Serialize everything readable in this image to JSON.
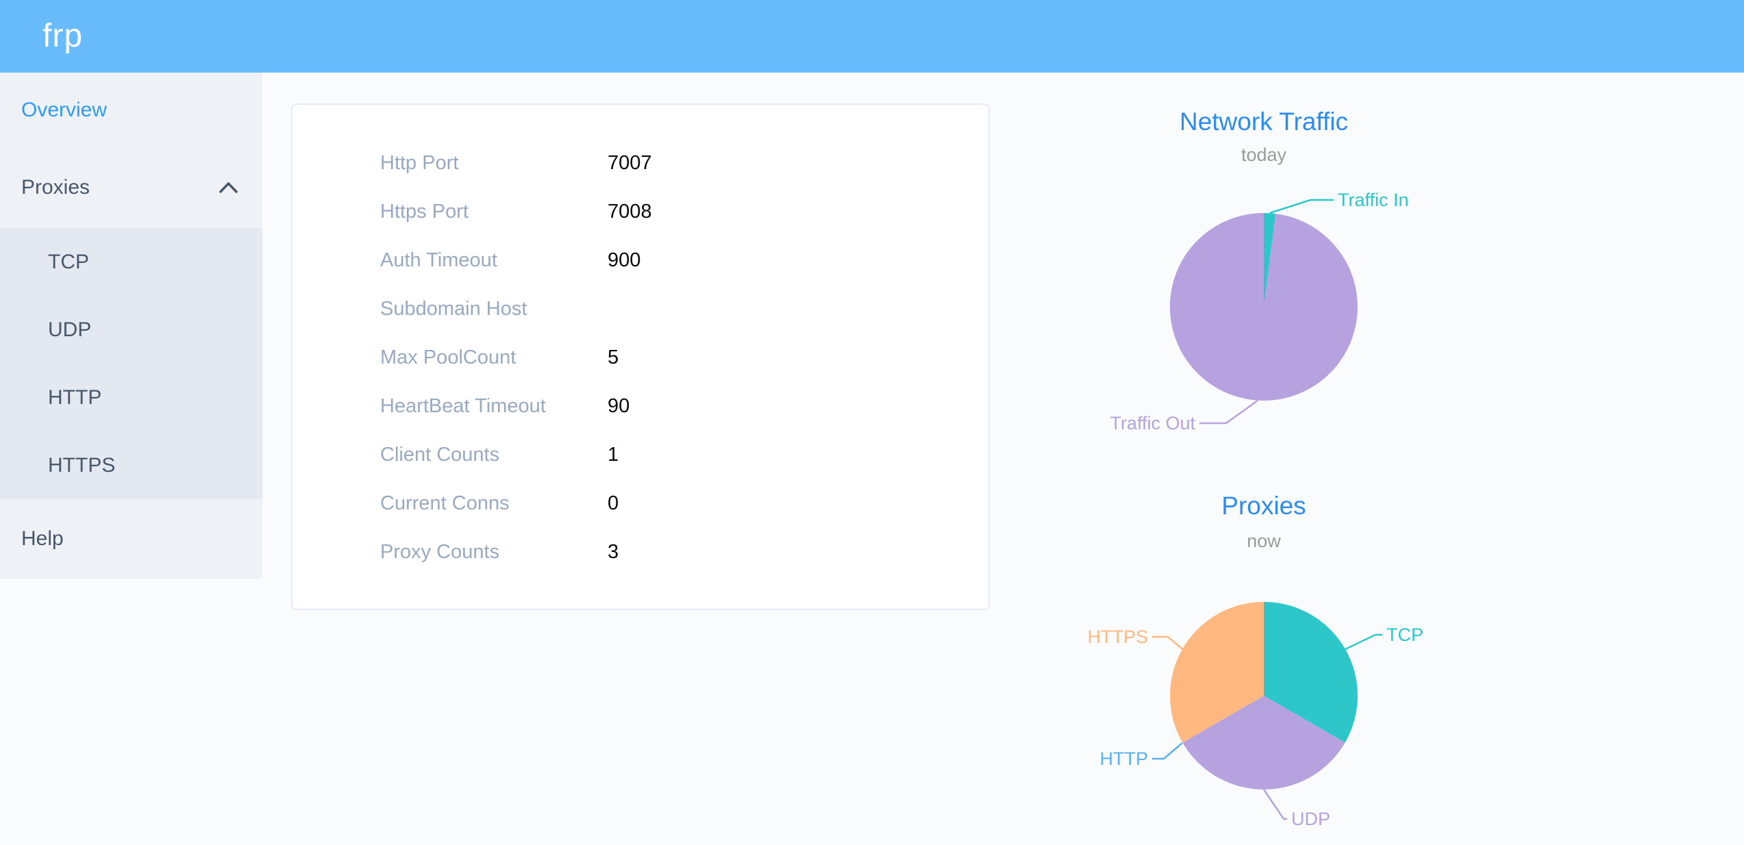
{
  "app": {
    "logo": "frp"
  },
  "colors": {
    "header_bg": "#68bcfc",
    "sidebar_bg": "#eef1f6",
    "submenu_bg": "#e4e8f1",
    "sidebar_text": "#48576a",
    "sidebar_active_text": "#2d9cf5",
    "chart_title": "#2d8cf0",
    "chart_subtitle": "#9a9a9a",
    "card_label": "#99a9bf",
    "card_value": "#0a0a0a",
    "teal": "#2ec7c9",
    "purple": "#b6a2de",
    "blue": "#5ab1ef",
    "orange": "#ffb980"
  },
  "sidebar": {
    "items": [
      {
        "label": "Overview",
        "active": true
      },
      {
        "label": "Proxies",
        "expanded": true,
        "icon": "chevron-up",
        "children": [
          "TCP",
          "UDP",
          "HTTP",
          "HTTPS"
        ]
      },
      {
        "label": "Help"
      }
    ]
  },
  "server_config": {
    "rows": [
      {
        "label": "Http Port",
        "value": "7007"
      },
      {
        "label": "Https Port",
        "value": "7008"
      },
      {
        "label": "Auth Timeout",
        "value": "900"
      },
      {
        "label": "Subdomain Host",
        "value": ""
      },
      {
        "label": "Max PoolCount",
        "value": "5"
      },
      {
        "label": "HeartBeat Timeout",
        "value": "90"
      },
      {
        "label": "Client Counts",
        "value": "1"
      },
      {
        "label": "Current Conns",
        "value": "0"
      },
      {
        "label": "Proxy Counts",
        "value": "3"
      }
    ]
  },
  "chart_data": [
    {
      "type": "pie",
      "title": "Network Traffic",
      "subtitle": "today",
      "legend_position": "outside-labels",
      "start_angle_deg": 0,
      "direction": "clockwise",
      "values_are": "estimated percent of pie area",
      "slices": [
        {
          "label": "Traffic In",
          "value": 2,
          "color": "#2ec7c9"
        },
        {
          "label": "Traffic Out",
          "value": 98,
          "color": "#b6a2de"
        }
      ]
    },
    {
      "type": "pie",
      "title": "Proxies",
      "subtitle": "now",
      "legend_position": "outside-labels",
      "start_angle_deg": 0,
      "direction": "clockwise",
      "values_are": "proxy counts (HTTP has zero slice, label only)",
      "slices": [
        {
          "label": "TCP",
          "value": 1,
          "color": "#2ec7c9"
        },
        {
          "label": "UDP",
          "value": 1,
          "color": "#b6a2de"
        },
        {
          "label": "HTTP",
          "value": 0,
          "color": "#5ab1ef"
        },
        {
          "label": "HTTPS",
          "value": 1,
          "color": "#ffb980"
        }
      ]
    }
  ]
}
